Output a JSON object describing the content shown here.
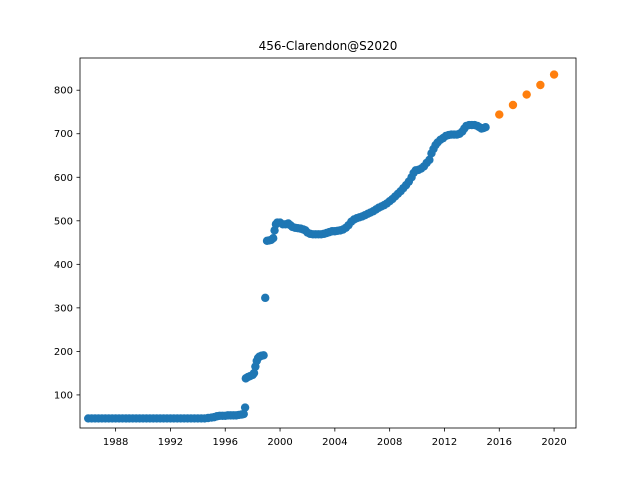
{
  "chart_data": {
    "type": "scatter",
    "title": "456-Clarendon@S2020",
    "xlabel": "",
    "ylabel": "",
    "xlim": [
      1985.4,
      2021.6
    ],
    "ylim": [
      24,
      874
    ],
    "x_ticks": [
      1988,
      1992,
      1996,
      2000,
      2004,
      2008,
      2012,
      2016,
      2020
    ],
    "y_ticks": [
      100,
      200,
      300,
      400,
      500,
      600,
      700,
      800
    ],
    "grid": false,
    "legend": "none",
    "series": [
      {
        "color": "#1f77b4",
        "points": [
          [
            1986.0,
            46
          ],
          [
            1986.25,
            46
          ],
          [
            1986.5,
            46
          ],
          [
            1986.75,
            46
          ],
          [
            1987.0,
            46
          ],
          [
            1987.25,
            46
          ],
          [
            1987.5,
            46
          ],
          [
            1987.75,
            46
          ],
          [
            1988.0,
            46
          ],
          [
            1988.25,
            46
          ],
          [
            1988.5,
            46
          ],
          [
            1988.75,
            46
          ],
          [
            1989.0,
            46
          ],
          [
            1989.25,
            46
          ],
          [
            1989.5,
            46
          ],
          [
            1989.75,
            46
          ],
          [
            1990.0,
            46
          ],
          [
            1990.25,
            46
          ],
          [
            1990.5,
            46
          ],
          [
            1990.75,
            46
          ],
          [
            1991.0,
            46
          ],
          [
            1991.25,
            46
          ],
          [
            1991.5,
            46
          ],
          [
            1991.75,
            46
          ],
          [
            1992.0,
            46
          ],
          [
            1992.25,
            46
          ],
          [
            1992.5,
            46
          ],
          [
            1992.75,
            46
          ],
          [
            1993.0,
            46
          ],
          [
            1993.25,
            46
          ],
          [
            1993.5,
            46
          ],
          [
            1993.75,
            46
          ],
          [
            1994.0,
            46
          ],
          [
            1994.25,
            46
          ],
          [
            1994.5,
            46
          ],
          [
            1994.75,
            47
          ],
          [
            1995.0,
            48
          ],
          [
            1995.2,
            49
          ],
          [
            1995.4,
            51
          ],
          [
            1995.6,
            52
          ],
          [
            1995.8,
            52
          ],
          [
            1996.0,
            52
          ],
          [
            1996.2,
            53
          ],
          [
            1996.4,
            53
          ],
          [
            1996.6,
            53
          ],
          [
            1996.8,
            53
          ],
          [
            1997.0,
            54
          ],
          [
            1997.2,
            55
          ],
          [
            1997.35,
            56
          ],
          [
            1997.45,
            71
          ],
          [
            1997.5,
            138
          ],
          [
            1997.65,
            141
          ],
          [
            1997.8,
            143
          ],
          [
            1998.0,
            146
          ],
          [
            1998.1,
            150
          ],
          [
            1998.2,
            165
          ],
          [
            1998.3,
            178
          ],
          [
            1998.4,
            185
          ],
          [
            1998.5,
            188
          ],
          [
            1998.65,
            190
          ],
          [
            1998.8,
            191
          ],
          [
            1998.92,
            323
          ],
          [
            1999.05,
            454
          ],
          [
            1999.2,
            455
          ],
          [
            1999.35,
            456
          ],
          [
            1999.5,
            460
          ],
          [
            1999.6,
            478
          ],
          [
            1999.7,
            492
          ],
          [
            1999.8,
            496
          ],
          [
            2000.0,
            496
          ],
          [
            2000.2,
            492
          ],
          [
            2000.4,
            492
          ],
          [
            2000.6,
            494
          ],
          [
            2000.75,
            490
          ],
          [
            2000.9,
            486
          ],
          [
            2001.1,
            484
          ],
          [
            2001.3,
            483
          ],
          [
            2001.5,
            482
          ],
          [
            2001.7,
            480
          ],
          [
            2001.85,
            478
          ],
          [
            2002.0,
            473
          ],
          [
            2002.2,
            470
          ],
          [
            2002.4,
            469
          ],
          [
            2002.6,
            469
          ],
          [
            2002.8,
            469
          ],
          [
            2003.0,
            469
          ],
          [
            2003.2,
            470
          ],
          [
            2003.4,
            472
          ],
          [
            2003.6,
            474
          ],
          [
            2003.8,
            476
          ],
          [
            2004.0,
            476
          ],
          [
            2004.2,
            477
          ],
          [
            2004.4,
            478
          ],
          [
            2004.6,
            480
          ],
          [
            2004.8,
            484
          ],
          [
            2005.0,
            490
          ],
          [
            2005.2,
            498
          ],
          [
            2005.4,
            503
          ],
          [
            2005.6,
            506
          ],
          [
            2005.8,
            508
          ],
          [
            2006.0,
            510
          ],
          [
            2006.2,
            513
          ],
          [
            2006.4,
            516
          ],
          [
            2006.6,
            519
          ],
          [
            2006.8,
            522
          ],
          [
            2007.0,
            526
          ],
          [
            2007.2,
            530
          ],
          [
            2007.4,
            533
          ],
          [
            2007.6,
            536
          ],
          [
            2007.8,
            540
          ],
          [
            2008.0,
            545
          ],
          [
            2008.2,
            550
          ],
          [
            2008.4,
            556
          ],
          [
            2008.6,
            562
          ],
          [
            2008.8,
            568
          ],
          [
            2009.0,
            575
          ],
          [
            2009.2,
            582
          ],
          [
            2009.4,
            590
          ],
          [
            2009.6,
            600
          ],
          [
            2009.75,
            610
          ],
          [
            2009.9,
            616
          ],
          [
            2010.1,
            617
          ],
          [
            2010.3,
            620
          ],
          [
            2010.5,
            625
          ],
          [
            2010.7,
            633
          ],
          [
            2010.9,
            640
          ],
          [
            2011.05,
            655
          ],
          [
            2011.2,
            665
          ],
          [
            2011.35,
            674
          ],
          [
            2011.5,
            680
          ],
          [
            2011.7,
            686
          ],
          [
            2011.9,
            690
          ],
          [
            2012.1,
            695
          ],
          [
            2012.3,
            697
          ],
          [
            2012.5,
            698
          ],
          [
            2012.7,
            698
          ],
          [
            2012.9,
            698
          ],
          [
            2013.1,
            700
          ],
          [
            2013.3,
            705
          ],
          [
            2013.45,
            712
          ],
          [
            2013.6,
            718
          ],
          [
            2013.8,
            720
          ],
          [
            2014.0,
            720
          ],
          [
            2014.2,
            720
          ],
          [
            2014.4,
            718
          ],
          [
            2014.55,
            715
          ],
          [
            2014.7,
            712
          ],
          [
            2014.85,
            713
          ],
          [
            2015.0,
            715
          ]
        ]
      },
      {
        "color": "#ff7f0e",
        "points": [
          [
            2016,
            744
          ],
          [
            2017,
            766
          ],
          [
            2018,
            790
          ],
          [
            2019,
            812
          ],
          [
            2020,
            836
          ]
        ]
      }
    ]
  }
}
